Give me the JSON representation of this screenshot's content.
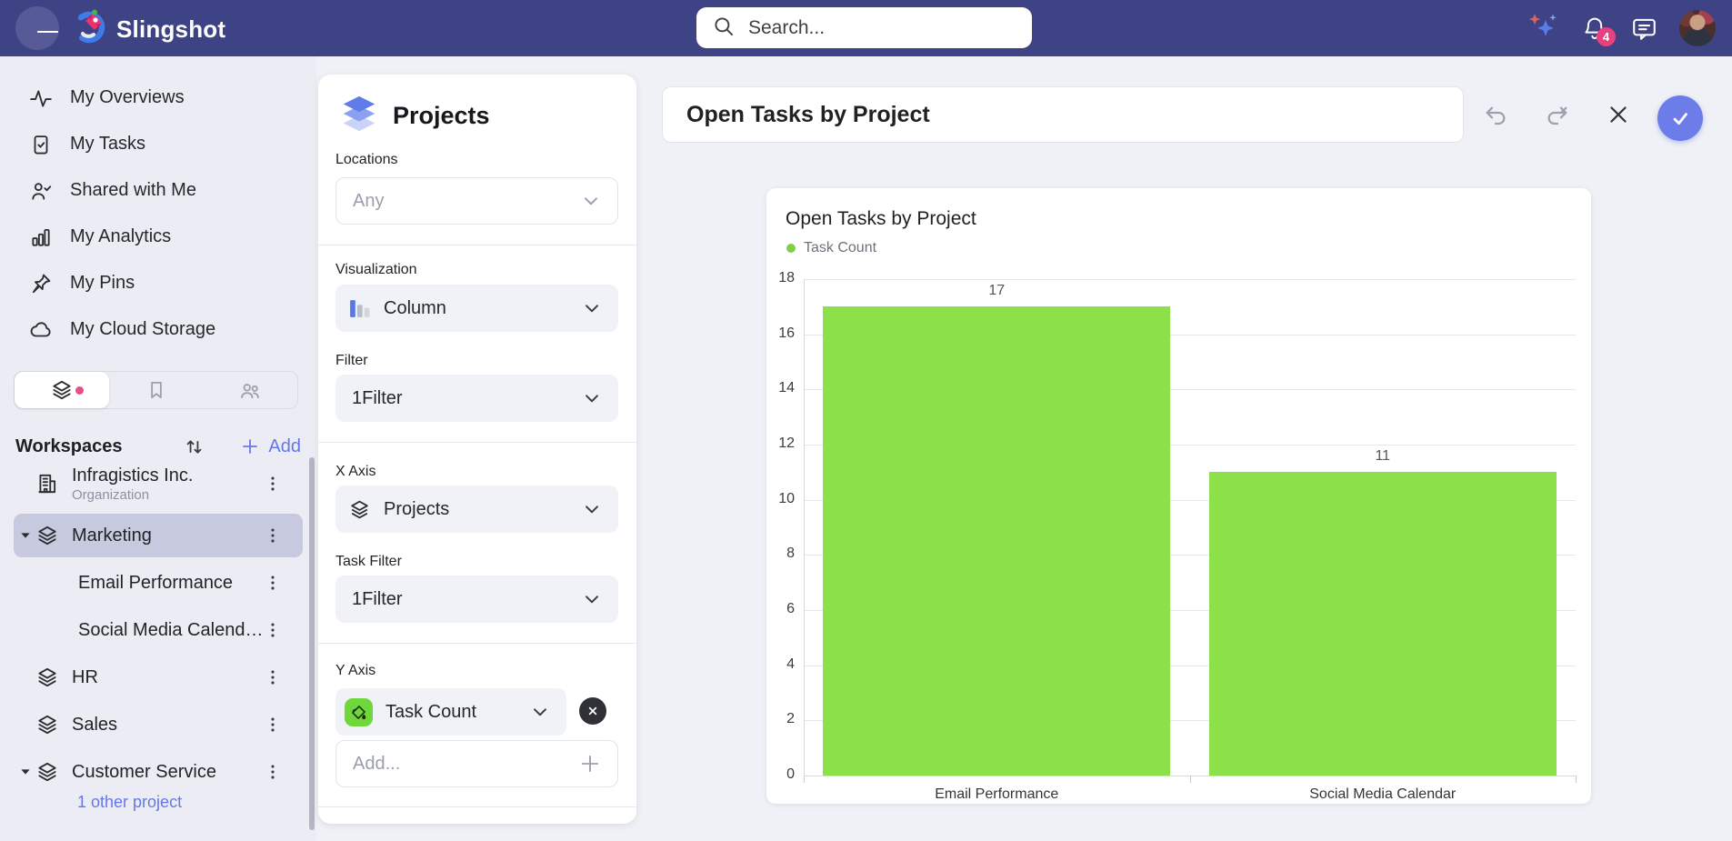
{
  "topbar": {
    "brand": "Slingshot",
    "search_placeholder": "Search...",
    "notification_count": "4"
  },
  "sidebar": {
    "items": [
      {
        "label": "My Overviews",
        "icon": "activity"
      },
      {
        "label": "My Tasks",
        "icon": "tasks"
      },
      {
        "label": "Shared with Me",
        "icon": "shared"
      },
      {
        "label": "My Analytics",
        "icon": "analytics"
      },
      {
        "label": "My Pins",
        "icon": "pin"
      },
      {
        "label": "My Cloud Storage",
        "icon": "cloud"
      }
    ],
    "tabs": [
      {
        "icon": "layers",
        "name": "workspaces",
        "active": true,
        "dot": true
      },
      {
        "icon": "bookmark",
        "name": "bookmarks",
        "active": false,
        "dot": false
      },
      {
        "icon": "people",
        "name": "people",
        "active": false,
        "dot": false
      }
    ],
    "workspaces_label": "Workspaces",
    "add_label": "Add",
    "tree": [
      {
        "label": "Infragistics Inc.",
        "sublabel": "Organization",
        "icon": "building",
        "kebab": true
      },
      {
        "label": "Marketing",
        "icon": "layers",
        "caret": true,
        "selected": true,
        "kebab": true
      },
      {
        "label": "Email Performance",
        "indent": true,
        "kebab": true
      },
      {
        "label": "Social Media Calend…",
        "indent": true,
        "kebab": true
      },
      {
        "label": "HR",
        "icon": "layers",
        "kebab": true
      },
      {
        "label": "Sales",
        "icon": "layers",
        "kebab": true
      },
      {
        "label": "Customer Service",
        "icon": "layers",
        "caret": true,
        "kebab": true
      }
    ],
    "footer_link": "1 other project"
  },
  "panel": {
    "title": "Projects",
    "locations": {
      "label": "Locations",
      "value": "Any"
    },
    "visualization": {
      "label": "Visualization",
      "value": "Column"
    },
    "filter": {
      "label": "Filter",
      "value": "1Filter"
    },
    "x_axis": {
      "label": "X Axis",
      "value": "Projects"
    },
    "task_filter": {
      "label": "Task Filter",
      "value": "1Filter"
    },
    "y_axis": {
      "label": "Y Axis",
      "value": "Task Count"
    },
    "add_placeholder": "Add..."
  },
  "main": {
    "title_value": "Open Tasks by Project"
  },
  "chart_data": {
    "type": "bar",
    "title": "Open Tasks by Project",
    "legend": [
      {
        "name": "Task Count",
        "color": "#7ED04B"
      }
    ],
    "categories": [
      "Email Performance",
      "Social Media Calendar"
    ],
    "values": [
      17,
      11
    ],
    "ylim": [
      0,
      18
    ],
    "ytick_step": 2,
    "grid": true,
    "legend_position": "top-left",
    "bar_color": "#8CE04A"
  },
  "colors": {
    "topbar": "#3E4386",
    "accent": "#6577E8",
    "badge": "#E8427E",
    "selected_row": "#C7CADF",
    "bar": "#8CE04A",
    "y_axis_chip": "#6FD63B"
  }
}
